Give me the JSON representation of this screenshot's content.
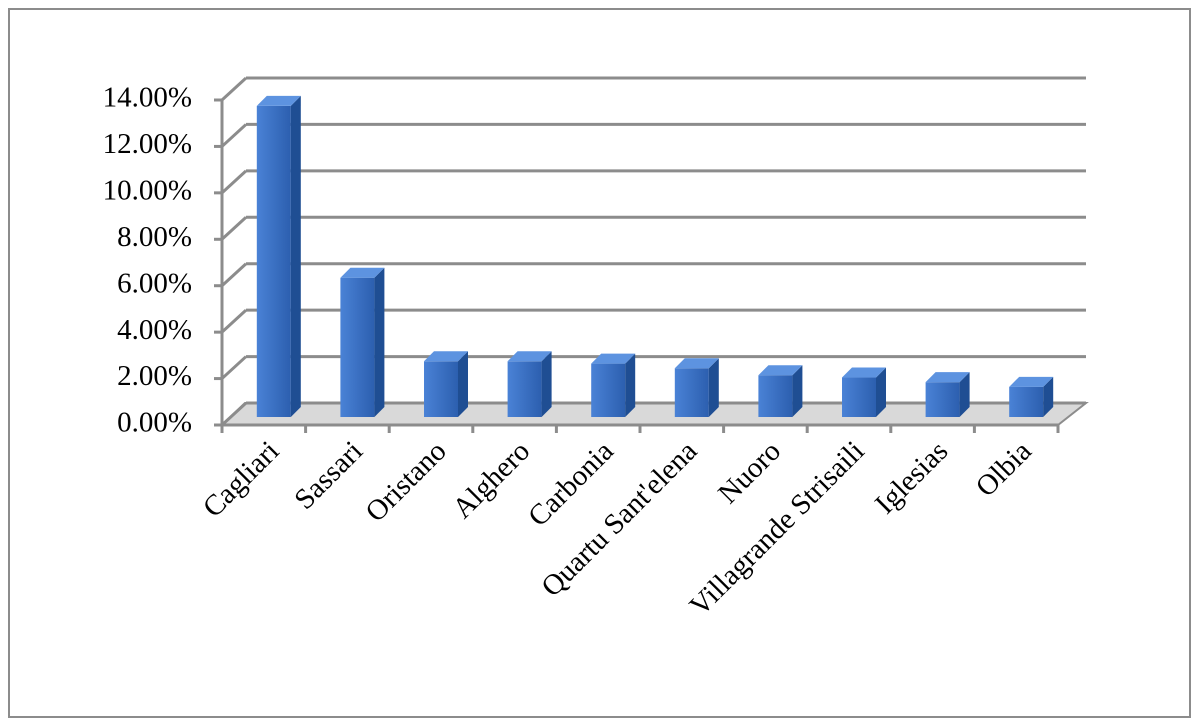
{
  "chart_data": {
    "type": "bar3d",
    "categories": [
      "Cagliari",
      "Sassari",
      "Oristano",
      "Alghero",
      "Carbonia",
      "Quartu Sant'elena",
      "Nuoro",
      "Villagrande Strisaili",
      "Iglesias",
      "Olbia"
    ],
    "values": [
      13.4,
      6.0,
      2.4,
      2.4,
      2.3,
      2.1,
      1.8,
      1.7,
      1.5,
      1.3
    ],
    "color": "#3a6fc4",
    "ylim": [
      0,
      14
    ],
    "yticks": [
      {
        "value": 0,
        "label": "0.00%"
      },
      {
        "value": 2,
        "label": "2.00%"
      },
      {
        "value": 4,
        "label": "4.00%"
      },
      {
        "value": 6,
        "label": "6.00%"
      },
      {
        "value": 8,
        "label": "8.00%"
      },
      {
        "value": 10,
        "label": "10.00%"
      },
      {
        "value": 12,
        "label": "12.00%"
      },
      {
        "value": 14,
        "label": "14.00%"
      }
    ],
    "grid": true
  }
}
